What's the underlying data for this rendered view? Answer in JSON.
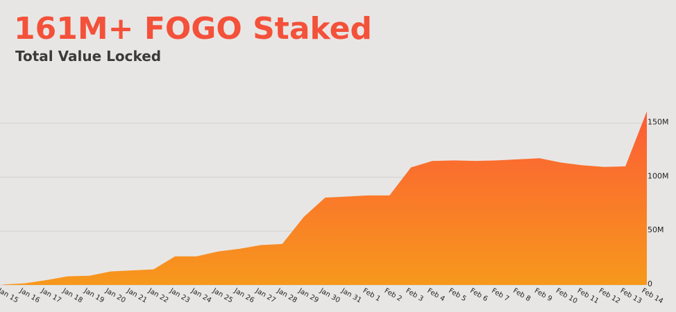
{
  "chart_data": {
    "type": "area",
    "title": "161M+ FOGO Staked",
    "subtitle": "Total Value Locked",
    "categories": [
      "Jan 15",
      "Jan 16",
      "Jan 17",
      "Jan 18",
      "Jan 19",
      "Jan 20",
      "Jan 21",
      "Jan 22",
      "Jan 23",
      "Jan 24",
      "Jan 25",
      "Jan 26",
      "Jan 27",
      "Jan 28",
      "Jan 29",
      "Jan 30",
      "Jan 31",
      "Feb 1",
      "Feb 2",
      "Feb 3",
      "Feb 4",
      "Feb 5",
      "Feb 6",
      "Feb 7",
      "Feb 8",
      "Feb 9",
      "Feb 10",
      "Feb 11",
      "Feb 12",
      "Feb 13",
      "Feb 14"
    ],
    "values": [
      0.5,
      1.5,
      4.5,
      8,
      8.5,
      12.5,
      13.5,
      14.5,
      26.5,
      26.5,
      31,
      33.5,
      37,
      38,
      63,
      81,
      82,
      83,
      83,
      109,
      115,
      115.5,
      115,
      115.5,
      116.5,
      117.5,
      113.5,
      111,
      109.5,
      110,
      161
    ],
    "gradient": [
      "#fc5c36",
      "#f7981c"
    ],
    "ylim": [
      0,
      170
    ],
    "yticks": [
      0,
      {
        "value": 50,
        "label": "50M"
      },
      {
        "value": 100,
        "label": "100M"
      },
      {
        "value": 150,
        "label": "150M"
      }
    ],
    "grid": true
  }
}
